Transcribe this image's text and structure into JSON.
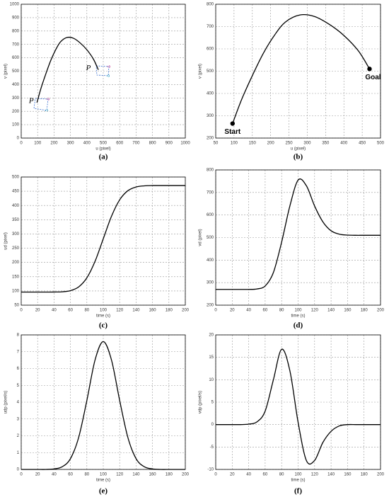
{
  "chart_data": [
    {
      "type": "line",
      "caption": "(a)",
      "xlabel": "u (pixel)",
      "ylabel": "v (pixel)",
      "x": [
        96,
        120,
        150,
        180,
        210,
        240,
        280,
        320,
        360,
        400,
        440,
        470
      ],
      "values": [
        265,
        370,
        480,
        580,
        660,
        720,
        752,
        745,
        710,
        660,
        590,
        510
      ],
      "color": "#000000",
      "xlim": [
        0,
        1000
      ],
      "xticks": [
        0,
        100,
        200,
        300,
        400,
        500,
        600,
        700,
        800,
        900,
        1000
      ],
      "ylim": [
        0,
        1000
      ],
      "yticks": [
        0,
        100,
        200,
        300,
        400,
        500,
        600,
        700,
        800,
        900,
        1000
      ],
      "grid": true,
      "annotations": [
        "P",
        "P"
      ],
      "markers": false
    },
    {
      "type": "line",
      "caption": "(b)",
      "xlabel": "u (pixel)",
      "ylabel": "v (pixel)",
      "x": [
        96,
        120,
        150,
        180,
        210,
        240,
        280,
        320,
        360,
        400,
        440,
        470
      ],
      "values": [
        265,
        370,
        480,
        580,
        660,
        720,
        752,
        745,
        710,
        660,
        590,
        510
      ],
      "color": "#000000",
      "xlim": [
        50,
        500
      ],
      "xticks": [
        50,
        100,
        150,
        200,
        250,
        300,
        350,
        400,
        450,
        500
      ],
      "ylim": [
        200,
        800
      ],
      "yticks": [
        200,
        300,
        400,
        500,
        600,
        700,
        800
      ],
      "grid": true,
      "annotations": [
        "Start",
        "Goal"
      ],
      "markers": true
    },
    {
      "type": "line",
      "caption": "(c)",
      "xlabel": "time (s)",
      "ylabel": "ud (pixel)",
      "x": [
        0,
        10,
        20,
        30,
        40,
        50,
        60,
        70,
        80,
        90,
        100,
        110,
        120,
        130,
        140,
        150,
        160,
        170,
        180,
        190,
        200
      ],
      "values": [
        96,
        96,
        96,
        96,
        96.2,
        97,
        101,
        114,
        146,
        204,
        283,
        362,
        420,
        452,
        465,
        469,
        470,
        470,
        470,
        470,
        470
      ],
      "color": "#000000",
      "xlim": [
        0,
        200
      ],
      "xticks": [
        0,
        20,
        40,
        60,
        80,
        100,
        120,
        140,
        160,
        180,
        200
      ],
      "ylim": [
        50,
        500
      ],
      "yticks": [
        50,
        100,
        150,
        200,
        250,
        300,
        350,
        400,
        450,
        500
      ],
      "grid": true
    },
    {
      "type": "line",
      "caption": "(d)",
      "xlabel": "time (s)",
      "ylabel": "vd (pixel)",
      "x": [
        0,
        10,
        20,
        30,
        40,
        50,
        60,
        70,
        80,
        90,
        100,
        110,
        120,
        130,
        140,
        150,
        160,
        170,
        180,
        190,
        200
      ],
      "values": [
        270,
        270,
        270,
        270,
        270,
        272,
        285,
        345,
        480,
        640,
        755,
        730,
        640,
        570,
        530,
        515,
        511,
        510,
        510,
        510,
        510
      ],
      "color": "#000000",
      "xlim": [
        0,
        200
      ],
      "xticks": [
        0,
        20,
        40,
        60,
        80,
        100,
        120,
        140,
        160,
        180,
        200
      ],
      "ylim": [
        200,
        800
      ],
      "yticks": [
        200,
        300,
        400,
        500,
        600,
        700,
        800
      ],
      "grid": true
    },
    {
      "type": "line",
      "caption": "(e)",
      "xlabel": "time (s)",
      "ylabel": "udp (pixel/s)",
      "x": [
        0,
        10,
        20,
        30,
        40,
        50,
        60,
        70,
        80,
        90,
        100,
        110,
        120,
        130,
        140,
        150,
        160,
        170,
        180,
        190,
        200
      ],
      "values": [
        0,
        0,
        0,
        0,
        0.03,
        0.16,
        0.64,
        1.9,
        4.1,
        6.51,
        7.6,
        6.51,
        4.1,
        1.9,
        0.64,
        0.16,
        0.03,
        0,
        0,
        0,
        0
      ],
      "color": "#000000",
      "xlim": [
        0,
        200
      ],
      "xticks": [
        0,
        20,
        40,
        60,
        80,
        100,
        120,
        140,
        160,
        180,
        200
      ],
      "ylim": [
        0,
        8
      ],
      "yticks": [
        0,
        1,
        2,
        3,
        4,
        5,
        6,
        7,
        8
      ],
      "grid": true
    },
    {
      "type": "line",
      "caption": "(f)",
      "xlabel": "time (s)",
      "ylabel": "vdp (pixel/s)",
      "x": [
        0,
        10,
        20,
        30,
        40,
        50,
        60,
        70,
        80,
        90,
        100,
        110,
        120,
        130,
        140,
        150,
        160,
        170,
        180,
        190,
        200
      ],
      "values": [
        0,
        0,
        0,
        0,
        0.1,
        0.6,
        3,
        10,
        16.8,
        12,
        0.5,
        -8,
        -8,
        -4,
        -1.5,
        -0.3,
        0,
        0,
        0,
        0,
        0
      ],
      "color": "#000000",
      "xlim": [
        0,
        200
      ],
      "xticks": [
        0,
        20,
        40,
        60,
        80,
        100,
        120,
        140,
        160,
        180,
        200
      ],
      "ylim": [
        -10,
        20
      ],
      "yticks": [
        -10,
        -5,
        0,
        5,
        10,
        15,
        20
      ],
      "grid": true
    }
  ]
}
